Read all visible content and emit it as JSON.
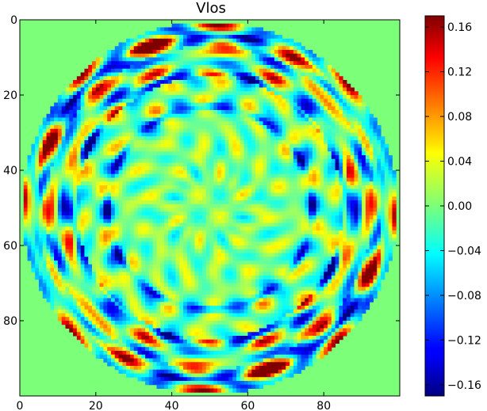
{
  "chart_data": {
    "type": "heatmap",
    "title": "Vlos",
    "xlabel": "",
    "ylabel": "",
    "grid_size": 100,
    "x_range": [
      0,
      100
    ],
    "y_range": [
      0,
      100
    ],
    "y_axis_inverted": true,
    "x_ticks": [
      0,
      20,
      40,
      60,
      80
    ],
    "y_ticks": [
      0,
      20,
      40,
      60,
      80
    ],
    "x_tick_labels": [
      "0",
      "20",
      "40",
      "60",
      "80"
    ],
    "y_tick_labels": [
      "0",
      "20",
      "40",
      "60",
      "80"
    ],
    "colormap": "jet",
    "value_range": [
      -0.17,
      0.17
    ],
    "background_value": 0.0,
    "disk_center": [
      50,
      50
    ],
    "disk_radius": 49.5,
    "colorbar": {
      "ticks": [
        0.16,
        0.12,
        0.08,
        0.04,
        0.0,
        -0.04,
        -0.08,
        -0.12,
        -0.16
      ],
      "tick_labels": [
        "0.16",
        "0.12",
        "0.08",
        "0.04",
        "0.00",
        "−0.04",
        "−0.08",
        "−0.12",
        "−0.16"
      ]
    }
  }
}
